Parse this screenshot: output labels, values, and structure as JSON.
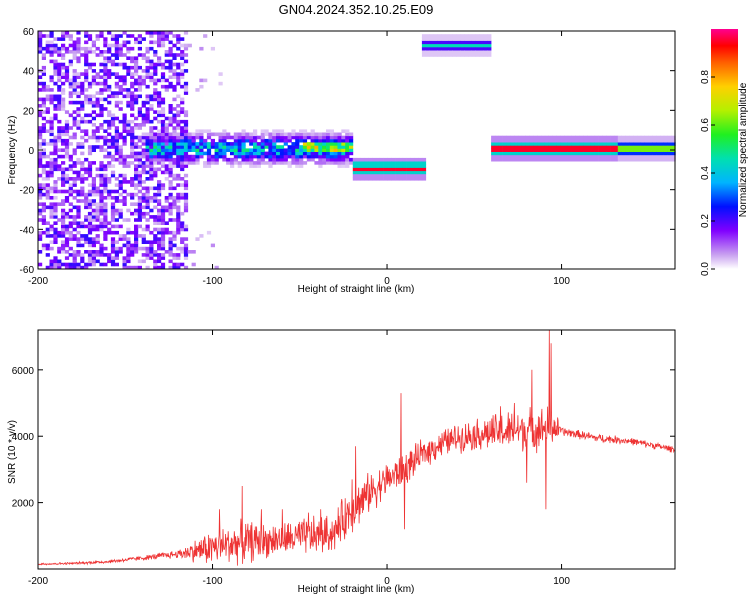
{
  "title": "GN04.2024.352.10.25.E09",
  "chart_data": [
    {
      "type": "heatmap",
      "xlabel": "Height of straight line (km)",
      "ylabel": "Frequency (Hz)",
      "xlim": [
        -200,
        165
      ],
      "ylim": [
        -60,
        60
      ],
      "xticks": [
        -200,
        -100,
        0,
        100
      ],
      "yticks": [
        -60,
        -40,
        -20,
        0,
        20,
        40,
        60
      ],
      "colorbar": {
        "label": "Normalized spectral amplitude",
        "range": [
          0,
          1
        ],
        "ticks": [
          0.0,
          0.2,
          0.4,
          0.6,
          0.8
        ]
      },
      "features": [
        {
          "name": "noise",
          "x_range": [
            -200,
            -115
          ],
          "freq_range": [
            -60,
            60
          ],
          "amplitude": 0.12
        },
        {
          "name": "central band",
          "x_range": [
            -140,
            -20
          ],
          "freq_center": 0,
          "freq_halfwidth": 6,
          "amplitude": 0.35
        },
        {
          "name": "peaks near -40",
          "x_range": [
            -50,
            -20
          ],
          "freq_center": 1,
          "amplitude": 0.8
        },
        {
          "name": "segment 1",
          "x_range": [
            -20,
            20
          ],
          "freq_center": -10,
          "amplitude": 0.95
        },
        {
          "name": "segment 2",
          "x_range": [
            19,
            58
          ],
          "freq_center": 52,
          "amplitude": 0.45
        },
        {
          "name": "segment 3",
          "x_range": [
            58,
            165
          ],
          "freq_center": 0,
          "amplitude": 0.95
        }
      ]
    },
    {
      "type": "line",
      "xlabel": "Height of straight line (km)",
      "ylabel": "SNR (10 * v/v)",
      "xlim": [
        -200,
        165
      ],
      "ylim": [
        0,
        7200
      ],
      "xticks": [
        -200,
        -100,
        0,
        100
      ],
      "yticks": [
        2000,
        4000,
        6000
      ],
      "color": "#ee3333",
      "x": [
        -200,
        -180,
        -160,
        -140,
        -120,
        -110,
        -100,
        -90,
        -80,
        -70,
        -60,
        -50,
        -40,
        -30,
        -25,
        -20,
        -10,
        0,
        10,
        20,
        30,
        40,
        50,
        60,
        70,
        80,
        90,
        95,
        100,
        120,
        140,
        160,
        165
      ],
      "y": [
        150,
        170,
        220,
        330,
        450,
        550,
        650,
        750,
        820,
        850,
        900,
        950,
        1000,
        1100,
        1500,
        1800,
        2300,
        2700,
        3000,
        3450,
        3750,
        3950,
        4050,
        4100,
        4150,
        4200,
        4250,
        4300,
        4150,
        3950,
        3850,
        3650,
        3600
      ],
      "noise": [
        40,
        40,
        60,
        80,
        150,
        400,
        650,
        700,
        750,
        600,
        600,
        650,
        700,
        650,
        800,
        800,
        700,
        600,
        600,
        500,
        500,
        500,
        550,
        650,
        700,
        750,
        750,
        750,
        160,
        150,
        130,
        120,
        120
      ],
      "spikes": [
        [
          -96,
          1800
        ],
        [
          -83,
          2500
        ],
        [
          -72,
          1800
        ],
        [
          -60,
          1800
        ],
        [
          -45,
          1700
        ],
        [
          -38,
          1800
        ],
        [
          -20,
          2700
        ],
        [
          -18,
          3700
        ],
        [
          8,
          5300
        ],
        [
          10,
          1200
        ],
        [
          65,
          4900
        ],
        [
          73,
          5000
        ],
        [
          80,
          2600
        ],
        [
          83,
          6000
        ],
        [
          91,
          1800
        ],
        [
          93,
          7200
        ],
        [
          94,
          6800
        ]
      ]
    }
  ]
}
